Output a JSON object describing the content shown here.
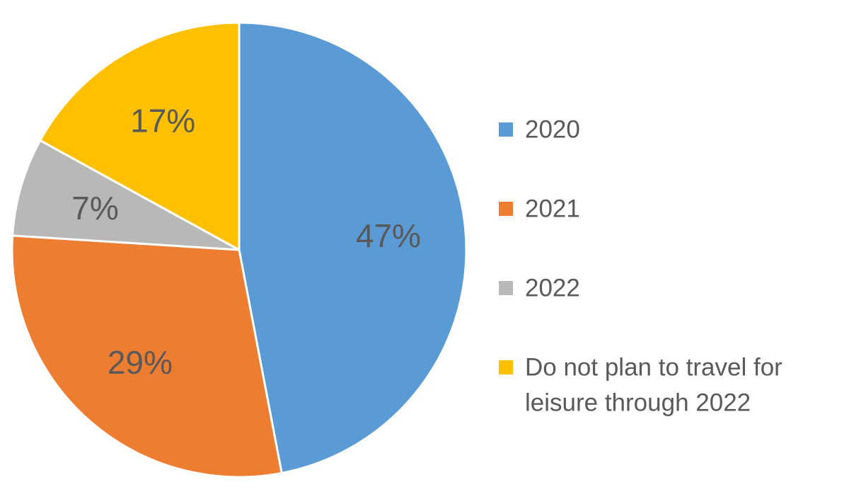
{
  "chart_data": {
    "type": "pie",
    "series": [
      {
        "label": "2020",
        "value": 47,
        "display": "47%",
        "color": "#5b9bd5"
      },
      {
        "label": "2021",
        "value": 29,
        "display": "29%",
        "color": "#ed7d31"
      },
      {
        "label": "2022",
        "value": 7,
        "display": "7%",
        "color": "#b8b8b8"
      },
      {
        "label_lines": [
          "Do not plan to travel for",
          "leisure through 2022"
        ],
        "value": 17,
        "display": "17%",
        "color": "#ffc000"
      }
    ],
    "legend_position": "right",
    "data_labels": "inside"
  }
}
